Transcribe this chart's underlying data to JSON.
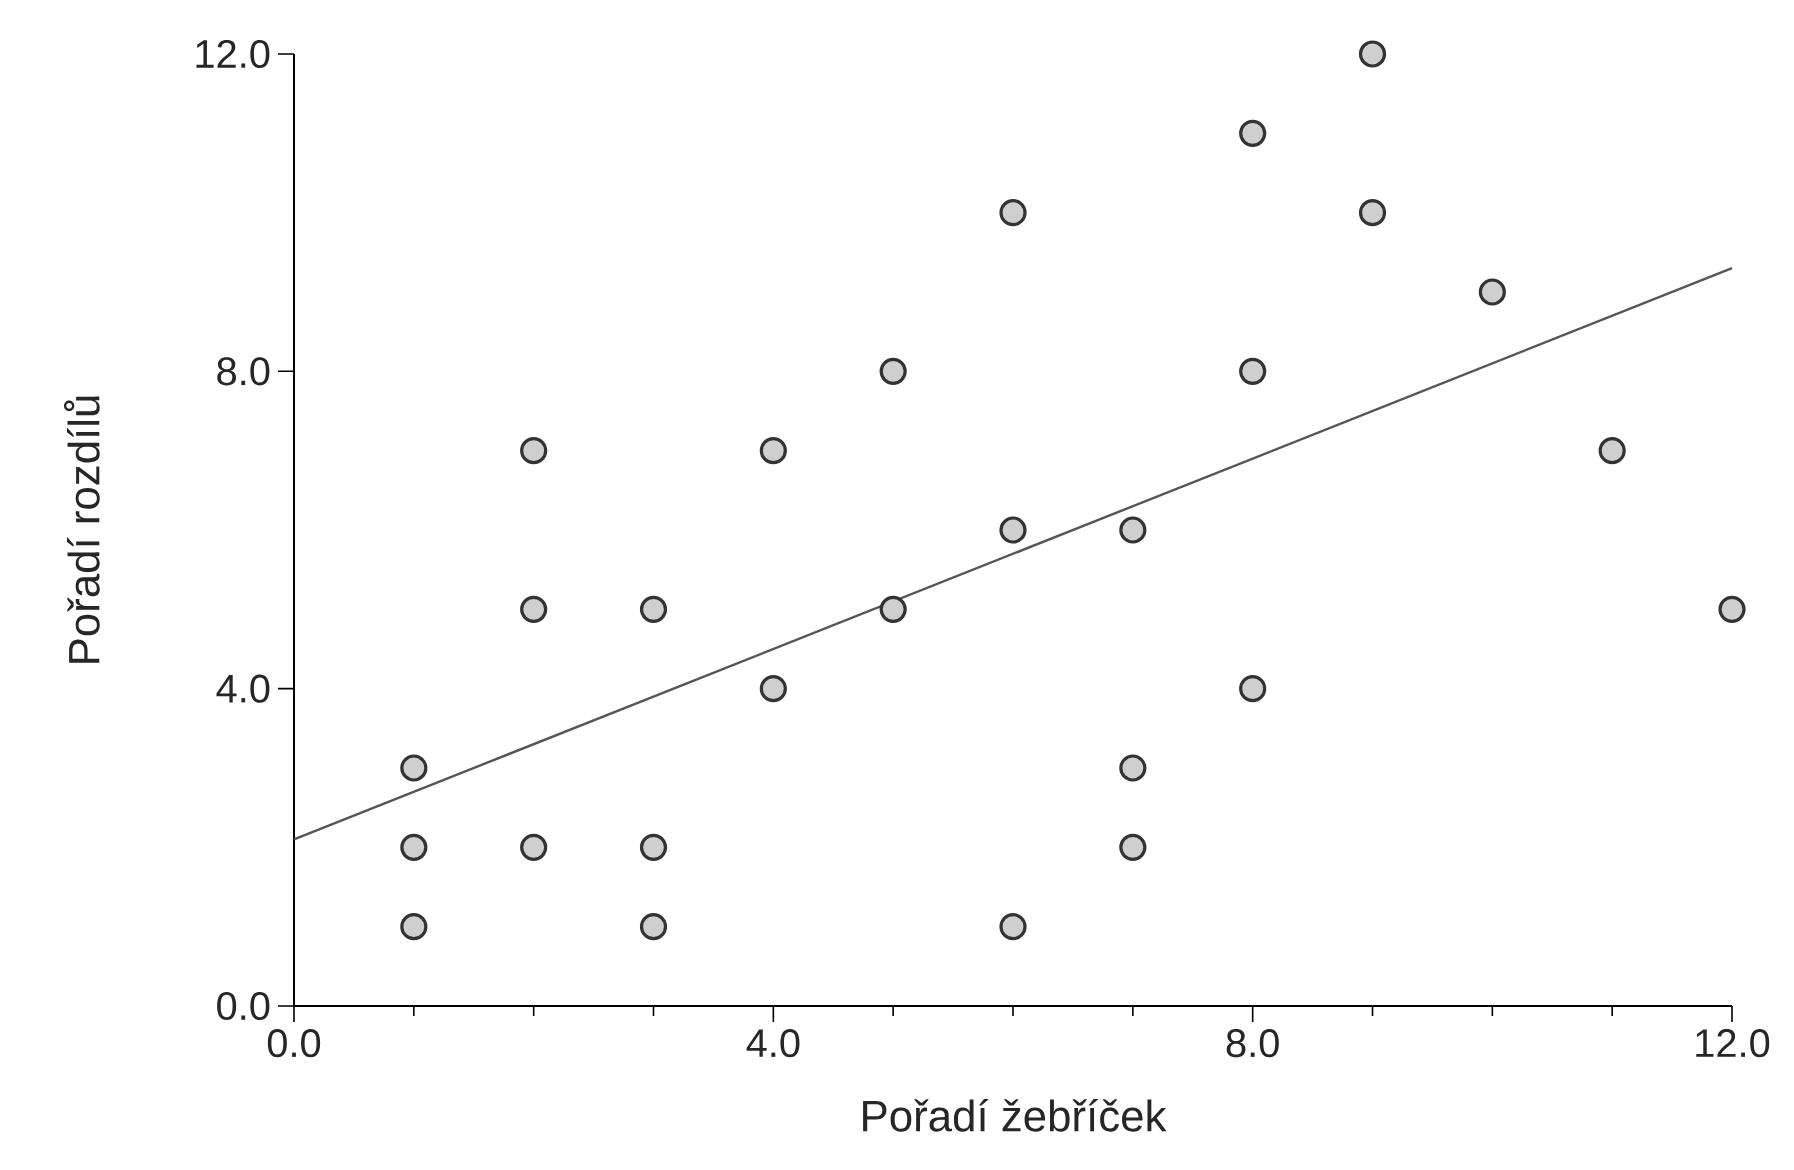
{
  "chart_data": {
    "type": "scatter",
    "xlabel": "Pořadí žebříček",
    "ylabel": "Pořadí rozdílů",
    "xlim": [
      0,
      12
    ],
    "ylim": [
      0,
      12
    ],
    "xticks": [
      {
        "value": 0,
        "label": "0.0"
      },
      {
        "value": 4,
        "label": "4.0"
      },
      {
        "value": 8,
        "label": "8.0"
      },
      {
        "value": 12,
        "label": "12.0"
      }
    ],
    "yticks": [
      {
        "value": 0,
        "label": "0.0"
      },
      {
        "value": 4,
        "label": "4.0"
      },
      {
        "value": 8,
        "label": "8.0"
      },
      {
        "value": 12,
        "label": "12.0"
      }
    ],
    "grid": false,
    "series": [
      {
        "marker": "circle",
        "color": "#cfcfcf",
        "x": [
          1,
          1,
          1,
          2,
          2,
          2,
          3,
          3,
          3,
          4,
          4,
          5,
          5,
          6,
          6,
          6,
          7,
          7,
          7,
          8,
          8,
          8,
          9,
          9,
          10,
          11,
          12
        ],
        "values": [
          1,
          2,
          3,
          2,
          5,
          7,
          1,
          2,
          5,
          4,
          7,
          5,
          8,
          1,
          6,
          10,
          2,
          3,
          6,
          4,
          8,
          11,
          10,
          12,
          9,
          7,
          5
        ]
      },
      {
        "type": "line",
        "marker": "none",
        "color": "#555555",
        "x": [
          0,
          12
        ],
        "values": [
          2.1,
          9.3
        ]
      }
    ]
  }
}
